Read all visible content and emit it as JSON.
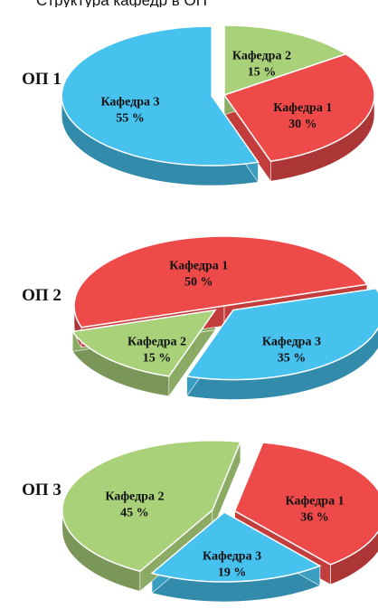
{
  "header": {
    "cropped_caption": "Структура кафедр в ОП"
  },
  "chart_data": [
    {
      "type": "pie",
      "label": "ОП 1",
      "slices": [
        {
          "name": "Кафедра 1",
          "value": 30,
          "value_label": "30 %",
          "color": "#ef4a4a"
        },
        {
          "name": "Кафедра 3",
          "value": 55,
          "value_label": "55 %",
          "color": "#47c1ee"
        },
        {
          "name": "Кафедра 2",
          "value": 15,
          "value_label": "15 %",
          "color": "#a9d17a"
        }
      ]
    },
    {
      "type": "pie",
      "label": "ОП 2",
      "slices": [
        {
          "name": "Кафедра 3",
          "value": 35,
          "value_label": "35 %",
          "color": "#47c1ee"
        },
        {
          "name": "Кафедра 2",
          "value": 15,
          "value_label": "15 %",
          "color": "#a9d17a"
        },
        {
          "name": "Кафедра 1",
          "value": 50,
          "value_label": "50 %",
          "color": "#ef4a4a"
        }
      ]
    },
    {
      "type": "pie",
      "label": "ОП 3",
      "slices": [
        {
          "name": "Кафедра 1",
          "value": 36,
          "value_label": "36 %",
          "color": "#ef4a4a"
        },
        {
          "name": "Кафедра 3",
          "value": 19,
          "value_label": "19 %",
          "color": "#47c1ee"
        },
        {
          "name": "Кафедра 2",
          "value": 45,
          "value_label": "45 %",
          "color": "#a9d17a"
        }
      ]
    }
  ]
}
